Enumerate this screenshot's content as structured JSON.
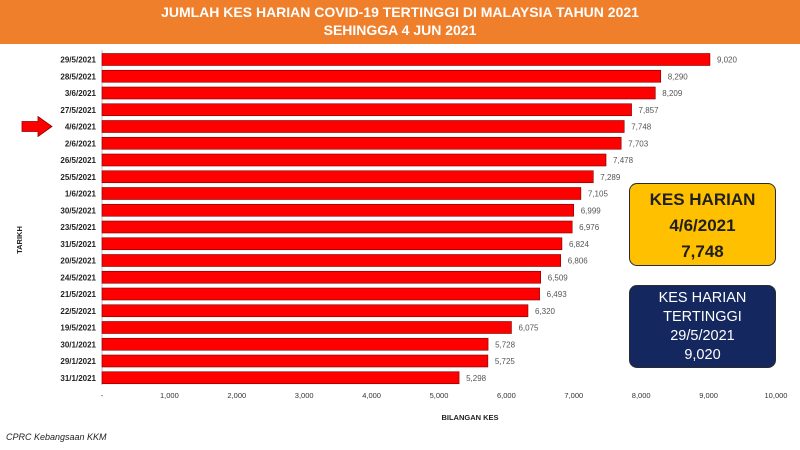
{
  "header": {
    "title_line1": "JUMLAH KES HARIAN COVID-19 TERTINGGI DI MALAYSIA TAHUN 2021",
    "title_line2": "SEHINGGA 4 JUN 2021"
  },
  "colors": {
    "header_bg": "#f07f2c",
    "bar": "#ff0000",
    "daily_box_bg": "#ffc000",
    "high_box_bg": "#14275e"
  },
  "chart_data": {
    "type": "bar",
    "orientation": "horizontal",
    "categories": [
      "29/5/2021",
      "28/5/2021",
      "3/6/2021",
      "27/5/2021",
      "4/6/2021",
      "2/6/2021",
      "26/5/2021",
      "25/5/2021",
      "1/6/2021",
      "30/5/2021",
      "23/5/2021",
      "31/5/2021",
      "20/5/2021",
      "24/5/2021",
      "21/5/2021",
      "22/5/2021",
      "19/5/2021",
      "30/1/2021",
      "29/1/2021",
      "31/1/2021"
    ],
    "values": [
      9020,
      8290,
      8209,
      7857,
      7748,
      7703,
      7478,
      7289,
      7105,
      6999,
      6976,
      6824,
      6806,
      6509,
      6493,
      6320,
      6075,
      5728,
      5725,
      5298
    ],
    "value_labels": [
      "9,020",
      "8,290",
      "8,209",
      "7,857",
      "7,748",
      "7,703",
      "7,478",
      "7,289",
      "7,105",
      "6,999",
      "6,976",
      "6,824",
      "6,806",
      "6,509",
      "6,493",
      "6,320",
      "6,075",
      "5,728",
      "5,725",
      "5,298"
    ],
    "xlabel": "BILANGAN KES",
    "ylabel": "TARIKH",
    "xlim": [
      0,
      10000
    ],
    "xticks": [
      0,
      1000,
      2000,
      3000,
      4000,
      5000,
      6000,
      7000,
      8000,
      9000,
      10000
    ],
    "xtick_labels": [
      "-",
      "1,000",
      "2,000",
      "3,000",
      "4,000",
      "5,000",
      "6,000",
      "7,000",
      "8,000",
      "9,000",
      "10,000"
    ],
    "highlighted_category": "4/6/2021",
    "grid": false
  },
  "callouts": {
    "daily": {
      "line1": "KES HARIAN",
      "line2": "4/6/2021",
      "line3": "7,748"
    },
    "highest": {
      "line1": "KES HARIAN",
      "line2": "TERTINGGI",
      "line3": "29/5/2021",
      "line4": "9,020"
    }
  },
  "source": "CPRC Kebangsaan KKM"
}
